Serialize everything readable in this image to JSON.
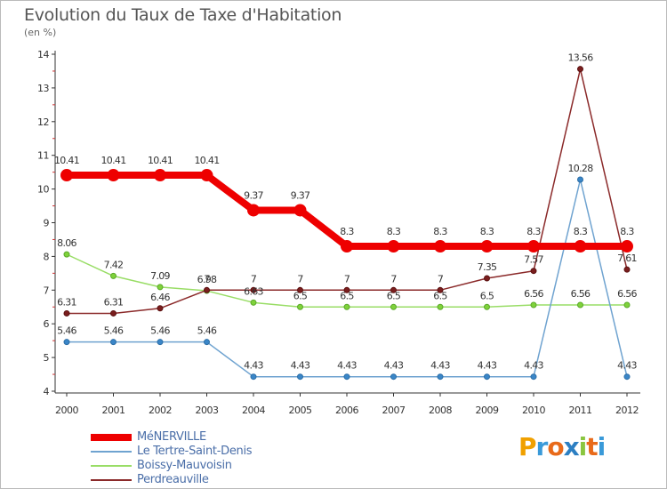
{
  "title": "Evolution du Taux de Taxe d'Habitation",
  "subtitle": "(en %)",
  "logo": "Proxiti",
  "chart_data": {
    "type": "line",
    "title": "Evolution du Taux de Taxe d'Habitation",
    "ylabel": "(en %)",
    "xlabel": "",
    "ylim": [
      4,
      14
    ],
    "yticks": [
      4,
      5,
      6,
      7,
      8,
      9,
      10,
      11,
      12,
      13,
      14
    ],
    "x": [
      "2000",
      "2001",
      "2002",
      "2003",
      "2004",
      "2005",
      "2006",
      "2007",
      "2008",
      "2009",
      "2010",
      "2011",
      "2012"
    ],
    "grid": false,
    "legend_position": "bottom-left",
    "series": [
      {
        "name": "MéNERVILLE",
        "color": "#ee0000",
        "values": [
          10.41,
          10.41,
          10.41,
          10.41,
          9.37,
          9.37,
          8.3,
          8.3,
          8.3,
          8.3,
          8.3,
          8.3,
          8.3
        ]
      },
      {
        "name": "Le Tertre-Saint-Denis",
        "color": "#6fa3d0",
        "values": [
          5.46,
          5.46,
          5.46,
          5.46,
          4.43,
          4.43,
          4.43,
          4.43,
          4.43,
          4.43,
          4.43,
          10.28,
          4.43
        ]
      },
      {
        "name": "Boissy-Mauvoisin",
        "color": "#99dd66",
        "values": [
          8.06,
          7.42,
          7.09,
          6.98,
          6.63,
          6.5,
          6.5,
          6.5,
          6.5,
          6.5,
          6.56,
          6.56,
          6.56
        ]
      },
      {
        "name": "Perdreauville",
        "color": "#8b2a2a",
        "values": [
          6.31,
          6.31,
          6.46,
          7,
          7,
          7,
          7,
          7,
          7,
          7.35,
          7.57,
          13.56,
          7.61
        ]
      }
    ]
  }
}
